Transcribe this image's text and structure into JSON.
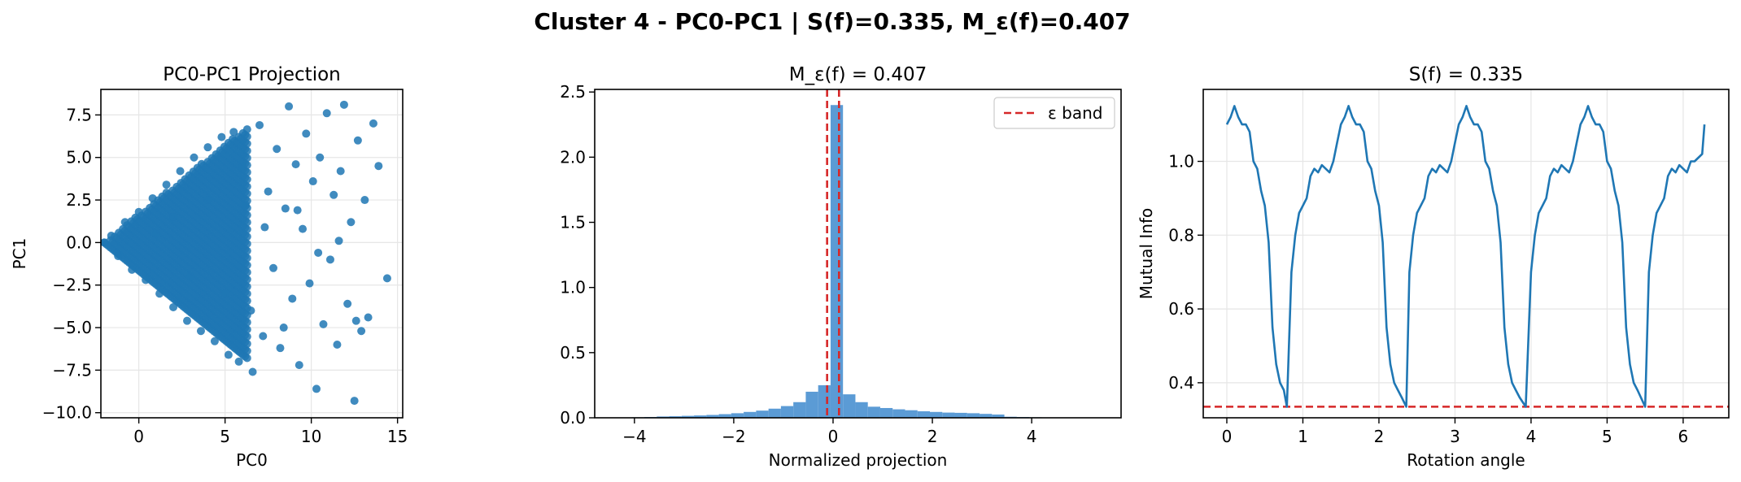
{
  "figure_title": "Cluster 4 - PC0-PC1 | S(f)=0.335, M_ε(f)=0.407",
  "chart_data": [
    {
      "type": "scatter",
      "title": "PC0-PC1 Projection",
      "xlabel": "PC0",
      "ylabel": "PC1",
      "xlim": [
        -2.2,
        15.3
      ],
      "ylim": [
        -10.3,
        9.0
      ],
      "xticks": [
        0,
        5,
        10,
        15
      ],
      "xtick_labels": [
        "0",
        "5",
        "10",
        "15"
      ],
      "yticks": [
        -10.0,
        -7.5,
        -5.0,
        -2.5,
        0.0,
        2.5,
        5.0,
        7.5
      ],
      "ytick_labels": [
        "−10.0",
        "−7.5",
        "−5.0",
        "−2.5",
        "0.0",
        "2.5",
        "5.0",
        "7.5"
      ],
      "grid": true,
      "color": "#1f77b4",
      "points": [
        [
          -2.0,
          0.0
        ],
        [
          -1.6,
          0.4
        ],
        [
          -1.2,
          -0.8
        ],
        [
          -0.8,
          1.2
        ],
        [
          -0.4,
          -1.6
        ],
        [
          0.0,
          1.8
        ],
        [
          0.4,
          -2.2
        ],
        [
          0.8,
          2.6
        ],
        [
          1.2,
          -3.0
        ],
        [
          1.6,
          3.4
        ],
        [
          2.0,
          -3.8
        ],
        [
          2.4,
          4.2
        ],
        [
          2.8,
          -4.6
        ],
        [
          3.2,
          5.0
        ],
        [
          3.6,
          -5.2
        ],
        [
          4.0,
          5.6
        ],
        [
          4.4,
          -5.8
        ],
        [
          4.8,
          6.2
        ],
        [
          5.2,
          -6.6
        ],
        [
          5.5,
          6.5
        ],
        [
          5.8,
          -7.0
        ],
        [
          1.0,
          0.5
        ],
        [
          2.0,
          1.5
        ],
        [
          3.0,
          -2.0
        ],
        [
          4.0,
          2.5
        ],
        [
          5.0,
          -3.0
        ],
        [
          6.0,
          4.5
        ],
        [
          6.5,
          -4.0
        ],
        [
          7.0,
          6.9
        ],
        [
          7.2,
          -5.5
        ],
        [
          7.5,
          3.0
        ],
        [
          7.8,
          -1.5
        ],
        [
          8.0,
          5.5
        ],
        [
          8.2,
          -6.2
        ],
        [
          8.5,
          2.0
        ],
        [
          8.7,
          8.0
        ],
        [
          8.9,
          -3.3
        ],
        [
          9.1,
          4.6
        ],
        [
          9.3,
          -7.2
        ],
        [
          9.5,
          0.8
        ],
        [
          9.7,
          6.4
        ],
        [
          9.9,
          -2.4
        ],
        [
          10.1,
          3.6
        ],
        [
          10.3,
          -8.6
        ],
        [
          10.5,
          5.0
        ],
        [
          10.7,
          -4.8
        ],
        [
          10.9,
          7.6
        ],
        [
          11.1,
          -1.0
        ],
        [
          11.3,
          2.8
        ],
        [
          11.5,
          -6.0
        ],
        [
          11.7,
          4.2
        ],
        [
          11.9,
          8.1
        ],
        [
          12.1,
          -3.6
        ],
        [
          12.3,
          1.2
        ],
        [
          12.5,
          -9.3
        ],
        [
          12.7,
          6.0
        ],
        [
          12.9,
          -5.2
        ],
        [
          13.1,
          2.5
        ],
        [
          13.3,
          -4.4
        ],
        [
          13.6,
          7.0
        ],
        [
          13.9,
          4.5
        ],
        [
          14.4,
          -2.1
        ],
        [
          12.6,
          -4.6
        ],
        [
          11.6,
          0.1
        ],
        [
          10.4,
          -0.6
        ],
        [
          9.2,
          1.9
        ],
        [
          8.4,
          -5.0
        ],
        [
          7.3,
          0.9
        ],
        [
          6.6,
          -7.6
        ],
        [
          6.2,
          2.2
        ]
      ]
    },
    {
      "type": "bar",
      "title": "M_ε(f) = 0.407",
      "xlabel": "Normalized projection",
      "ylabel": "",
      "xlim": [
        -4.8,
        5.8
      ],
      "ylim": [
        0,
        2.52
      ],
      "xticks": [
        -4,
        -2,
        0,
        2,
        4
      ],
      "xtick_labels": [
        "−4",
        "−2",
        "0",
        "2",
        "4"
      ],
      "yticks": [
        0.0,
        0.5,
        1.0,
        1.5,
        2.0,
        2.5
      ],
      "ytick_labels": [
        "0.0",
        "0.5",
        "1.0",
        "1.5",
        "2.0",
        "2.5"
      ],
      "grid": false,
      "color": "#5b9bd5",
      "bin_start": -4.3,
      "bin_width": 0.25,
      "values": [
        0.002,
        0.004,
        0.006,
        0.01,
        0.012,
        0.015,
        0.018,
        0.022,
        0.028,
        0.035,
        0.045,
        0.055,
        0.07,
        0.09,
        0.12,
        0.2,
        0.25,
        2.4,
        0.18,
        0.12,
        0.085,
        0.075,
        0.065,
        0.058,
        0.05,
        0.045,
        0.04,
        0.038,
        0.035,
        0.03,
        0.025,
        0.008,
        0.006,
        0.004,
        0.003,
        0.002,
        0.002,
        0.001,
        0.001,
        0.001
      ],
      "vlines": [
        -0.12,
        0.12
      ],
      "vline_color": "#d62728",
      "legend": [
        {
          "name": "ε band",
          "style": "dashed",
          "color": "#d62728"
        }
      ],
      "legend_position": "top-right"
    },
    {
      "type": "line",
      "title": "S(f) = 0.335",
      "xlabel": "Rotation angle",
      "ylabel": "Mutual Info",
      "xlim": [
        -0.31,
        6.6
      ],
      "ylim": [
        0.305,
        1.195
      ],
      "xticks": [
        0,
        1,
        2,
        3,
        4,
        5,
        6
      ],
      "xtick_labels": [
        "0",
        "1",
        "2",
        "3",
        "4",
        "5",
        "6"
      ],
      "yticks": [
        0.4,
        0.6,
        0.8,
        1.0
      ],
      "ytick_labels": [
        "0.4",
        "0.6",
        "0.8",
        "1.0"
      ],
      "grid": true,
      "color": "#1f77b4",
      "x": [
        0.0,
        0.05,
        0.1,
        0.15,
        0.2,
        0.25,
        0.3,
        0.35,
        0.4,
        0.45,
        0.5,
        0.55,
        0.6,
        0.65,
        0.7,
        0.75,
        0.79,
        0.85,
        0.9,
        0.95,
        1.0,
        1.05,
        1.1,
        1.15,
        1.2,
        1.25,
        1.3,
        1.35,
        1.4,
        1.45,
        1.5,
        1.55,
        1.6,
        1.65,
        1.7,
        1.75,
        1.8,
        1.85,
        1.9,
        1.95,
        2.0,
        2.05,
        2.1,
        2.15,
        2.2,
        2.25,
        2.3,
        2.36,
        2.4,
        2.45,
        2.5,
        2.55,
        2.6,
        2.65,
        2.7,
        2.75,
        2.8,
        2.85,
        2.9,
        2.95,
        3.0,
        3.05,
        3.1,
        3.15,
        3.2,
        3.25,
        3.3,
        3.35,
        3.4,
        3.45,
        3.5,
        3.55,
        3.6,
        3.65,
        3.7,
        3.75,
        3.8,
        3.85,
        3.93,
        4.0,
        4.05,
        4.1,
        4.15,
        4.2,
        4.25,
        4.3,
        4.35,
        4.4,
        4.45,
        4.5,
        4.55,
        4.6,
        4.65,
        4.7,
        4.75,
        4.8,
        4.85,
        4.9,
        4.95,
        5.0,
        5.05,
        5.1,
        5.15,
        5.2,
        5.25,
        5.3,
        5.35,
        5.4,
        5.5,
        5.55,
        5.6,
        5.65,
        5.7,
        5.75,
        5.8,
        5.85,
        5.9,
        5.95,
        6.0,
        6.05,
        6.1,
        6.15,
        6.2,
        6.25,
        6.28
      ],
      "y": [
        1.1,
        1.12,
        1.15,
        1.12,
        1.1,
        1.1,
        1.08,
        1.0,
        0.98,
        0.92,
        0.88,
        0.78,
        0.55,
        0.45,
        0.4,
        0.38,
        0.335,
        0.7,
        0.8,
        0.86,
        0.88,
        0.9,
        0.96,
        0.98,
        0.97,
        0.99,
        0.98,
        0.97,
        1.0,
        1.05,
        1.1,
        1.12,
        1.15,
        1.12,
        1.1,
        1.1,
        1.08,
        1.0,
        0.98,
        0.92,
        0.88,
        0.78,
        0.55,
        0.45,
        0.4,
        0.38,
        0.36,
        0.335,
        0.7,
        0.8,
        0.86,
        0.88,
        0.9,
        0.96,
        0.98,
        0.97,
        0.99,
        0.98,
        0.97,
        1.0,
        1.05,
        1.1,
        1.12,
        1.15,
        1.12,
        1.1,
        1.1,
        1.08,
        1.0,
        0.98,
        0.92,
        0.88,
        0.78,
        0.55,
        0.45,
        0.4,
        0.38,
        0.36,
        0.335,
        0.7,
        0.8,
        0.86,
        0.88,
        0.9,
        0.96,
        0.98,
        0.97,
        0.99,
        0.98,
        0.97,
        1.0,
        1.05,
        1.1,
        1.12,
        1.15,
        1.12,
        1.1,
        1.1,
        1.08,
        1.0,
        0.98,
        0.92,
        0.88,
        0.78,
        0.55,
        0.45,
        0.4,
        0.38,
        0.335,
        0.7,
        0.8,
        0.86,
        0.88,
        0.9,
        0.96,
        0.98,
        0.97,
        0.99,
        0.98,
        0.97,
        1.0,
        1.0,
        1.01,
        1.02,
        1.1
      ],
      "hline": 0.335,
      "hline_color": "#d62728"
    }
  ]
}
